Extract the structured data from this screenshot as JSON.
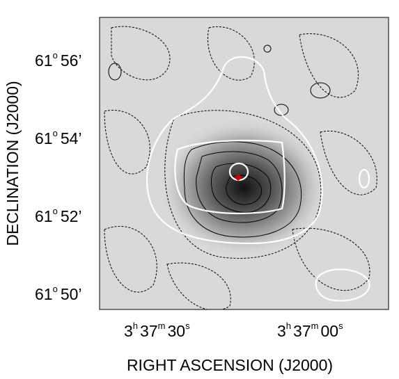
{
  "figure": {
    "y_axis": {
      "label": "DECLINATION (J2000)",
      "ticks": [
        {
          "deg": "61",
          "deg_sign": "o",
          "min": "56’"
        },
        {
          "deg": "61",
          "deg_sign": "o",
          "min": "54’"
        },
        {
          "deg": "61",
          "deg_sign": "o",
          "min": "52’"
        },
        {
          "deg": "61",
          "deg_sign": "o",
          "min": "50’"
        }
      ]
    },
    "x_axis": {
      "label": "RIGHT ASCENSION (J2000)",
      "ticks": [
        {
          "h": "3",
          "h_sign": "h",
          "m": "37",
          "m_sign": "m",
          "s": "30",
          "s_sign": "s"
        },
        {
          "h": "3",
          "h_sign": "h",
          "m": "37",
          "m_sign": "m",
          "s": "00",
          "s_sign": "s"
        }
      ]
    }
  }
}
